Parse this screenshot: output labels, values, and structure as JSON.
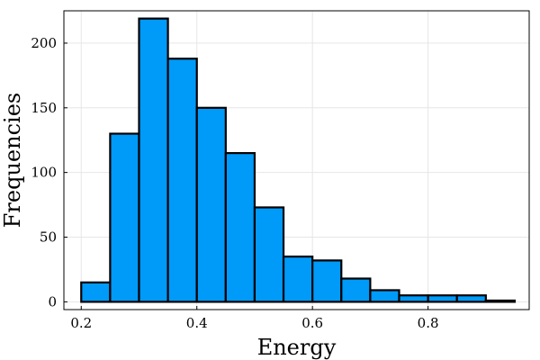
{
  "chart_data": {
    "type": "bar",
    "xlabel": "Energy",
    "ylabel": "Frequencies",
    "xlim": [
      0.17,
      0.975
    ],
    "ylim": [
      -6,
      225
    ],
    "grid": true,
    "legend": "none",
    "bar_color": "#009af9",
    "bin_width": 0.05,
    "bin_starts": [
      0.2,
      0.25,
      0.3,
      0.35,
      0.4,
      0.45,
      0.5,
      0.55,
      0.6,
      0.65,
      0.7,
      0.75,
      0.8,
      0.85,
      0.9
    ],
    "values": [
      15,
      130,
      219,
      188,
      150,
      115,
      73,
      35,
      32,
      18,
      9,
      5,
      5,
      5,
      1
    ],
    "x_ticks": [
      0.2,
      0.4,
      0.6,
      0.8
    ],
    "x_tick_labels": [
      "0.2",
      "0.4",
      "0.6",
      "0.8"
    ],
    "y_ticks": [
      0,
      50,
      100,
      150,
      200
    ],
    "y_tick_labels": [
      "0",
      "50",
      "100",
      "150",
      "200"
    ]
  }
}
